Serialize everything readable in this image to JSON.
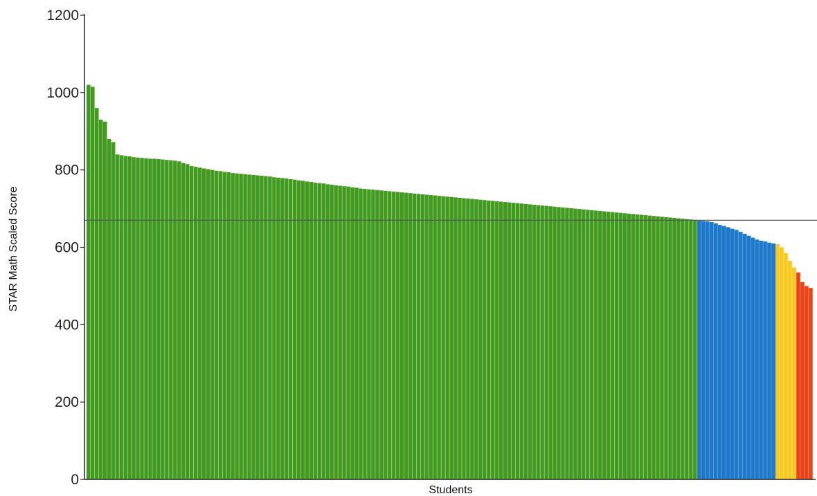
{
  "chart_data": {
    "type": "bar",
    "title": "",
    "xlabel": "Students",
    "ylabel": "STAR Math Scaled Score",
    "ylim": [
      0,
      1200
    ],
    "yticks": [
      0,
      200,
      400,
      600,
      800,
      1000,
      1200
    ],
    "grid": false,
    "legend": "none",
    "benchmark_line": {
      "y": 670,
      "color": "#555555"
    },
    "colors": {
      "green": "#3f9a2b",
      "green_edge": "#b9d84a",
      "blue": "#1f78c8",
      "blue_edge": "#5aa7e8",
      "yellow": "#f7c81e",
      "yellow_edge": "#fbe27a",
      "red": "#e8431d",
      "red_edge": "#f58a5a"
    },
    "series": [
      {
        "color": "green",
        "values": [
          1020,
          1015,
          960,
          930,
          925,
          880,
          872,
          840,
          838,
          836,
          835,
          833,
          832,
          831,
          830,
          829,
          829,
          828,
          827,
          826,
          825,
          824,
          822,
          818,
          815,
          810,
          808,
          806,
          804,
          802,
          800,
          798,
          797,
          795,
          794,
          792,
          791,
          790,
          789,
          788,
          787,
          786,
          785,
          784,
          783,
          781,
          780,
          779,
          778,
          776,
          775,
          773,
          772,
          770,
          769,
          767,
          766,
          765,
          763,
          762,
          760,
          759,
          758,
          757,
          755,
          754,
          752,
          751,
          750,
          749,
          748,
          747,
          746,
          745,
          744,
          743,
          742,
          741,
          740,
          739,
          738,
          737,
          736,
          735,
          734,
          733,
          732,
          731,
          730,
          729,
          728,
          727,
          726,
          725,
          724,
          723,
          722,
          721,
          720,
          719,
          718,
          717,
          716,
          715,
          714,
          713,
          712,
          711,
          710,
          709,
          708,
          707,
          706,
          705,
          704,
          703,
          702,
          701,
          700,
          699,
          698,
          697,
          696,
          695,
          694,
          693,
          692,
          691,
          690,
          689,
          688,
          687,
          686,
          685,
          684,
          683,
          682,
          681,
          680,
          679,
          678,
          677,
          676,
          675,
          674,
          673,
          672,
          671
        ]
      },
      {
        "color": "blue",
        "values": [
          670,
          668,
          667,
          665,
          662,
          658,
          655,
          652,
          648,
          645,
          640,
          635,
          630,
          625,
          620,
          617,
          615,
          612,
          610
        ]
      },
      {
        "color": "yellow",
        "values": [
          608,
          600,
          585,
          565,
          548
        ]
      },
      {
        "color": "red",
        "values": [
          535,
          510,
          500,
          495
        ]
      }
    ]
  }
}
